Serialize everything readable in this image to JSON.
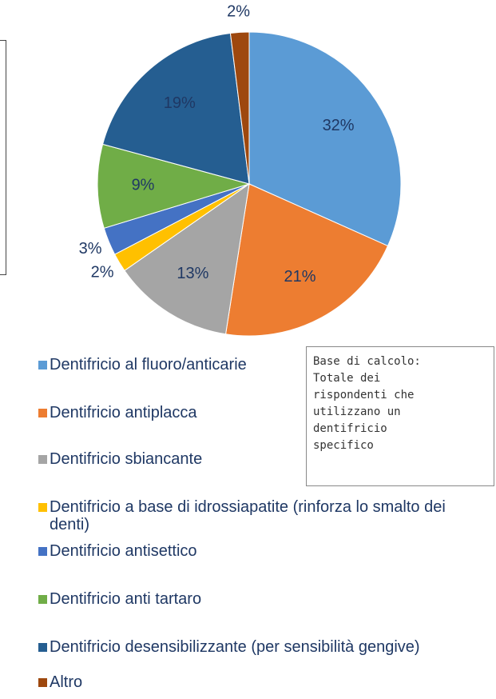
{
  "chart_data": {
    "type": "pie",
    "categories": [
      "Dentifricio al fluoro/anticarie",
      "Dentifricio antiplacca",
      "Dentifricio sbiancante",
      "Dentifricio a base di idrossiapatite (rinforza lo smalto dei denti)",
      "Dentifricio antisettico",
      "Dentifricio anti tartaro",
      "Dentifricio desensibilizzante (per sensibilità gengive)",
      "Altro"
    ],
    "values": [
      32,
      21,
      13,
      2,
      3,
      9,
      19,
      2
    ],
    "value_labels": [
      "32%",
      "21%",
      "13%",
      "2%",
      "3%",
      "9%",
      "19%",
      "2%"
    ],
    "colors": [
      "#5b9bd5",
      "#ed7d31",
      "#a5a5a5",
      "#ffc000",
      "#4472c4",
      "#70ad47",
      "#255e91",
      "#9e480e"
    ],
    "note": [
      "Base di calcolo:",
      "Totale dei",
      "rispondenti che",
      "utilizzano un",
      "dentifricio",
      "specifico"
    ]
  }
}
